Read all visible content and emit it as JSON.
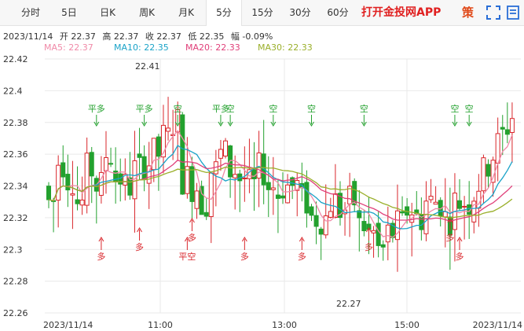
{
  "tabs": [
    {
      "label": "分时",
      "active": false
    },
    {
      "label": "5日",
      "active": false
    },
    {
      "label": "日K",
      "active": false
    },
    {
      "label": "周K",
      "active": false
    },
    {
      "label": "月K",
      "active": false
    },
    {
      "label": "5分",
      "active": true
    },
    {
      "label": "15分",
      "active": false
    },
    {
      "label": "30分",
      "active": false
    },
    {
      "label": "60分",
      "active": false
    }
  ],
  "brand": "打开金投网APP",
  "strategy": "策",
  "icons": {
    "fullscreen": "fullscreen-icon",
    "more": "more-icon"
  },
  "info": {
    "date": "2023/11/14",
    "open": "开 22.37",
    "high": "高 22.37",
    "close": "收 22.37",
    "low": "低 22.35",
    "change": "幅 -0.09%"
  },
  "ma": [
    {
      "label": "MA5: 22.37",
      "color": "#f08aa8"
    },
    {
      "label": "MA10: 22.35",
      "color": "#1aa3c8"
    },
    {
      "label": "MA20: 22.33",
      "color": "#e0407a"
    },
    {
      "label": "MA30: 22.33",
      "color": "#9aaf2a"
    }
  ],
  "colors": {
    "up": "#d9262b",
    "down": "#23a12e",
    "grid": "#e9e9e9"
  },
  "chart_data": {
    "type": "candlestick",
    "y_ticks": [
      "22.42",
      "22.4",
      "22.38",
      "22.36",
      "22.34",
      "22.32",
      "22.3",
      "22.28",
      "22.26"
    ],
    "ylim": [
      22.26,
      22.42
    ],
    "x_ticks": [
      "2023/11/14",
      "11:00",
      "13:00",
      "15:00",
      "2023/11/14"
    ],
    "annotations": {
      "high_label": "22.41",
      "low_label": "22.27"
    },
    "signals": [
      {
        "text": "平多",
        "dir": "down",
        "bar": 10
      },
      {
        "text": "平多",
        "dir": "down",
        "bar": 20
      },
      {
        "text": "空",
        "dir": "down",
        "bar": 27
      },
      {
        "text": "平多",
        "dir": "down",
        "bar": 36
      },
      {
        "text": "空",
        "dir": "down",
        "bar": 38
      },
      {
        "text": "空",
        "dir": "down",
        "bar": 47
      },
      {
        "text": "空",
        "dir": "down",
        "bar": 55
      },
      {
        "text": "空",
        "dir": "down",
        "bar": 66
      },
      {
        "text": "空",
        "dir": "down",
        "bar": 85
      },
      {
        "text": "空",
        "dir": "down",
        "bar": 88
      },
      {
        "text": "多",
        "dir": "up",
        "bar": 11
      },
      {
        "text": "多",
        "dir": "up",
        "bar": 19
      },
      {
        "text": "多",
        "dir": "up",
        "bar": 30
      },
      {
        "text": "平空",
        "dir": "up",
        "bar": 29
      },
      {
        "text": "多",
        "dir": "up",
        "bar": 41
      },
      {
        "text": "多",
        "dir": "up",
        "bar": 53
      },
      {
        "text": "多",
        "dir": "up",
        "bar": 67
      },
      {
        "text": "多",
        "dir": "up",
        "bar": 84
      },
      {
        "text": "多",
        "dir": "up",
        "bar": 86
      }
    ]
  }
}
